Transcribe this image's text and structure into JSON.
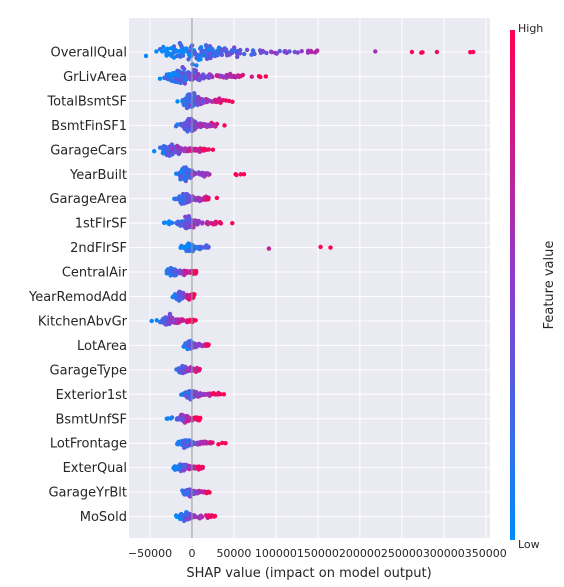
{
  "chart_data": {
    "type": "scatter",
    "subtype": "shap-beeswarm",
    "title": "",
    "xlabel": "SHAP value (impact on model output)",
    "xlim": [
      -75000,
      355000
    ],
    "xticks": [
      -50000,
      0,
      50000,
      100000,
      150000,
      200000,
      250000,
      300000,
      350000
    ],
    "xtick_labels": [
      "−50000",
      "0",
      "50000",
      "100000",
      "150000",
      "200000",
      "250000",
      "300000",
      "350000"
    ],
    "grid": true,
    "colorbar": {
      "label": "Feature value",
      "high_label": "High",
      "low_label": "Low",
      "low_color": "#008bfb",
      "mid_color": "#8a3ecf",
      "high_color": "#ff0052"
    },
    "features": [
      {
        "name": "OverallQual",
        "min": -60000,
        "max": 335000,
        "core": [
          -35000,
          150000
        ],
        "density": 1.0,
        "outliers": [
          262000,
          335000
        ]
      },
      {
        "name": "GrLivArea",
        "min": -45000,
        "max": 90000,
        "core": [
          -30000,
          60000
        ],
        "density": 0.9,
        "outliers": [
          88000
        ]
      },
      {
        "name": "TotalBsmtSF",
        "min": -18000,
        "max": 50000,
        "core": [
          -10000,
          35000
        ],
        "density": 0.75,
        "outliers": []
      },
      {
        "name": "BsmtFinSF1",
        "min": -25000,
        "max": 45000,
        "core": [
          -10000,
          30000
        ],
        "density": 0.75,
        "outliers": []
      },
      {
        "name": "GarageCars",
        "min": -48000,
        "max": 27000,
        "core": [
          -35000,
          15000
        ],
        "density": 0.65,
        "outliers": []
      },
      {
        "name": "YearBuilt",
        "min": -28000,
        "max": 62000,
        "core": [
          -15000,
          20000
        ],
        "density": 0.6,
        "outliers": [
          52000,
          62000
        ]
      },
      {
        "name": "GarageArea",
        "min": -25000,
        "max": 35000,
        "core": [
          -15000,
          20000
        ],
        "density": 0.6,
        "outliers": []
      },
      {
        "name": "1stFlrSF",
        "min": -35000,
        "max": 48000,
        "core": [
          -15000,
          35000
        ],
        "density": 0.6,
        "outliers": [
          48000
        ]
      },
      {
        "name": "2ndFlrSF",
        "min": -15000,
        "max": 165000,
        "core": [
          -10000,
          20000
        ],
        "density": 0.5,
        "outliers": [
          165000
        ]
      },
      {
        "name": "CentralAir",
        "min": -30000,
        "max": 5000,
        "core": [
          -30000,
          5000
        ],
        "density": 0.45,
        "outliers": []
      },
      {
        "name": "YearRemodAdd",
        "min": -25000,
        "max": 5000,
        "core": [
          -20000,
          5000
        ],
        "density": 0.45,
        "outliers": []
      },
      {
        "name": "KitchenAbvGr",
        "min": -50000,
        "max": 5000,
        "core": [
          -35000,
          5000
        ],
        "density": 0.45,
        "outliers": [
          -48000
        ]
      },
      {
        "name": "LotArea",
        "min": -10000,
        "max": 27000,
        "core": [
          -8000,
          20000
        ],
        "density": 0.45,
        "outliers": []
      },
      {
        "name": "GarageType",
        "min": -20000,
        "max": 12000,
        "core": [
          -15000,
          10000
        ],
        "density": 0.4,
        "outliers": []
      },
      {
        "name": "Exterior1st",
        "min": -20000,
        "max": 38000,
        "core": [
          -10000,
          30000
        ],
        "density": 0.4,
        "outliers": [
          38000
        ]
      },
      {
        "name": "BsmtUnfSF",
        "min": -30000,
        "max": 12000,
        "core": [
          -15000,
          10000
        ],
        "density": 0.4,
        "outliers": [
          -30000
        ]
      },
      {
        "name": "LotFrontage",
        "min": -20000,
        "max": 40000,
        "core": [
          -15000,
          25000
        ],
        "density": 0.4,
        "outliers": [
          40000
        ]
      },
      {
        "name": "ExterQual",
        "min": -22000,
        "max": 13000,
        "core": [
          -20000,
          13000
        ],
        "density": 0.4,
        "outliers": []
      },
      {
        "name": "GarageYrBlt",
        "min": -15000,
        "max": 22000,
        "core": [
          -10000,
          20000
        ],
        "density": 0.4,
        "outliers": []
      },
      {
        "name": "MoSold",
        "min": -20000,
        "max": 28000,
        "core": [
          -15000,
          25000
        ],
        "density": 0.4,
        "outliers": []
      }
    ]
  }
}
